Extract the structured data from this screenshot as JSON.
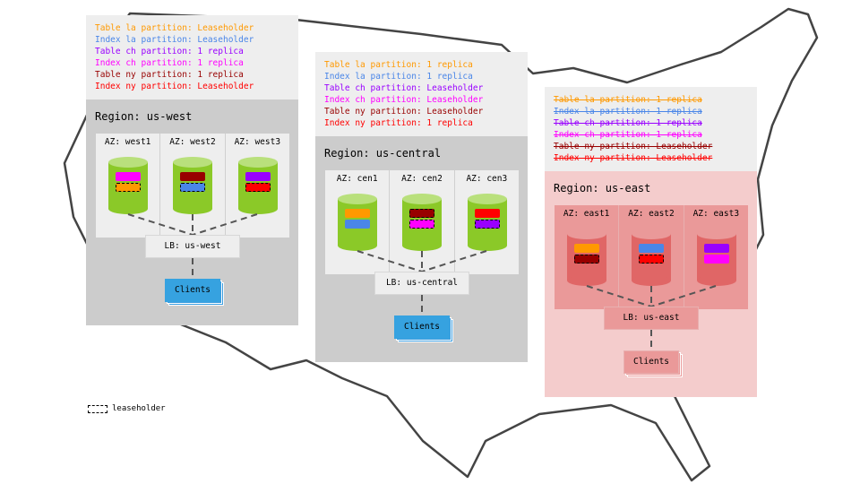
{
  "colors": {
    "la_table": "#ff9900",
    "la_index": "#4a86e8",
    "ch_table": "#9900ff",
    "ch_index": "#ff00ff",
    "ny_table": "#980000",
    "ny_index": "#ff0000"
  },
  "regions": [
    {
      "id": "west",
      "title": "Region: us-west",
      "lb": "LB: us-west",
      "clients": "Clients",
      "info": [
        {
          "text": "Table la partition: Leaseholder",
          "color": "#ff9900"
        },
        {
          "text": "Index la partition: Leaseholder",
          "color": "#4a86e8"
        },
        {
          "text": "Table ch partition: 1 replica",
          "color": "#9900ff"
        },
        {
          "text": "Index ch partition: 1 replica",
          "color": "#ff00ff"
        },
        {
          "text": "Table ny partition: 1 replica",
          "color": "#980000"
        },
        {
          "text": "Index ny partition: Leaseholder",
          "color": "#ff0000"
        }
      ],
      "azs": [
        {
          "label": "AZ: west1",
          "bars": [
            {
              "color": "#ff00ff",
              "leaseholder": false
            },
            {
              "color": "#ff9900",
              "leaseholder": true
            }
          ]
        },
        {
          "label": "AZ: west2",
          "bars": [
            {
              "color": "#980000",
              "leaseholder": false
            },
            {
              "color": "#4a86e8",
              "leaseholder": true
            }
          ]
        },
        {
          "label": "AZ: west3",
          "bars": [
            {
              "color": "#9900ff",
              "leaseholder": false
            },
            {
              "color": "#ff0000",
              "leaseholder": true
            }
          ]
        }
      ]
    },
    {
      "id": "central",
      "title": "Region: us-central",
      "lb": "LB: us-central",
      "clients": "Clients",
      "info": [
        {
          "text": "Table la partition: 1 replica",
          "color": "#ff9900"
        },
        {
          "text": "Index la partition: 1 replica",
          "color": "#4a86e8"
        },
        {
          "text": "Table ch partition: Leaseholder",
          "color": "#9900ff"
        },
        {
          "text": "Index ch partition: Leaseholder",
          "color": "#ff00ff"
        },
        {
          "text": "Table ny partition: Leaseholder",
          "color": "#980000"
        },
        {
          "text": "Index ny partition: 1 replica",
          "color": "#ff0000"
        }
      ],
      "azs": [
        {
          "label": "AZ: cen1",
          "bars": [
            {
              "color": "#ff9900",
              "leaseholder": false
            },
            {
              "color": "#4a86e8",
              "leaseholder": false
            }
          ]
        },
        {
          "label": "AZ: cen2",
          "bars": [
            {
              "color": "#980000",
              "leaseholder": true
            },
            {
              "color": "#ff00ff",
              "leaseholder": true
            }
          ]
        },
        {
          "label": "AZ: cen3",
          "bars": [
            {
              "color": "#ff0000",
              "leaseholder": false
            },
            {
              "color": "#9900ff",
              "leaseholder": true
            }
          ]
        }
      ]
    },
    {
      "id": "east",
      "title": "Region: us-east",
      "lb": "LB: us-east",
      "clients": "Clients",
      "info": [
        {
          "text": "Table la partition: 1 replica",
          "color": "#ff9900"
        },
        {
          "text": "Index la partition: 1 replica",
          "color": "#4a86e8"
        },
        {
          "text": "Table ch partition: 1 replica",
          "color": "#9900ff"
        },
        {
          "text": "Index ch partition: 1 replica",
          "color": "#ff00ff"
        },
        {
          "text": "Table ny partition: Leaseholder",
          "color": "#980000"
        },
        {
          "text": "Index ny partition: Leaseholder",
          "color": "#ff0000"
        }
      ],
      "azs": [
        {
          "label": "AZ: east1",
          "bars": [
            {
              "color": "#ff9900",
              "leaseholder": false
            },
            {
              "color": "#980000",
              "leaseholder": true
            }
          ]
        },
        {
          "label": "AZ: east2",
          "bars": [
            {
              "color": "#4a86e8",
              "leaseholder": false
            },
            {
              "color": "#ff0000",
              "leaseholder": true
            }
          ]
        },
        {
          "label": "AZ: east3",
          "bars": [
            {
              "color": "#9900ff",
              "leaseholder": false
            },
            {
              "color": "#ff00ff",
              "leaseholder": false
            }
          ]
        }
      ]
    }
  ],
  "legend": {
    "label": "leaseholder"
  }
}
